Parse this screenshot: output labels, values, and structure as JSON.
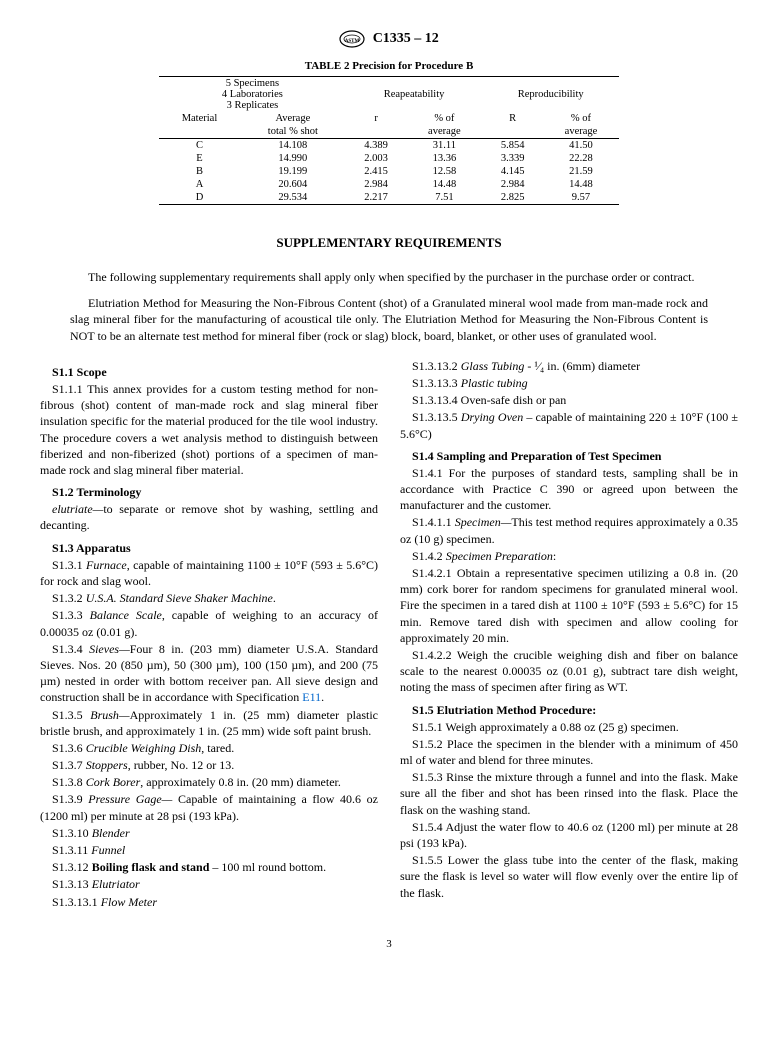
{
  "header": {
    "doc_code": "C1335 – 12"
  },
  "table": {
    "title": "TABLE 2 Precision for Procedure B",
    "spec_line1": "5 Specimens",
    "spec_line2": "4 Laboratories",
    "spec_line3": "3 Replicates",
    "group1": "Reapeatability",
    "group2": "Reproducibility",
    "col_material": "Material",
    "col_avg_l1": "Average",
    "col_avg_l2": "total % shot",
    "col_r": "r",
    "col_pct1_l1": "% of",
    "col_pct1_l2": "average",
    "col_R": "R",
    "col_pct2_l1": "% of",
    "col_pct2_l2": "average",
    "rows": [
      {
        "m": "C",
        "avg": "14.108",
        "r": "4.389",
        "p1": "31.11",
        "R": "5.854",
        "p2": "41.50"
      },
      {
        "m": "E",
        "avg": "14.990",
        "r": "2.003",
        "p1": "13.36",
        "R": "3.339",
        "p2": "22.28"
      },
      {
        "m": "B",
        "avg": "19.199",
        "r": "2.415",
        "p1": "12.58",
        "R": "4.145",
        "p2": "21.59"
      },
      {
        "m": "A",
        "avg": "20.604",
        "r": "2.984",
        "p1": "14.48",
        "R": "2.984",
        "p2": "14.48"
      },
      {
        "m": "D",
        "avg": "29.534",
        "r": "2.217",
        "p1": "7.51",
        "R": "2.825",
        "p2": "9.57"
      }
    ]
  },
  "supp_title": "SUPPLEMENTARY REQUIREMENTS",
  "intro1": "The following supplementary requirements shall apply only when specified by the purchaser in the purchase order or contract.",
  "intro2": "Elutriation Method for Measuring the Non-Fibrous Content (shot) of a Granulated mineral wool made from man-made rock and slag mineral fiber for the manufacturing of acoustical tile only. The Elutriation Method for Measuring the Non-Fibrous Content is NOT to be an alternate test method for mineral fiber (rock or slag) block, board, blanket, or other uses of granulated wool.",
  "s1_1_h": "S1.1 Scope",
  "s1_1_1": "S1.1.1 This annex provides for a custom testing method for non-fibrous (shot) content of man-made rock and slag mineral fiber insulation specific for the material produced for the tile wool industry. The procedure covers a wet analysis method to distinguish between fiberized and non-fiberized (shot) portions of a specimen of man-made rock and slag mineral fiber material.",
  "s1_2_h": "S1.2 Terminology",
  "s1_2_def": "elutriate—",
  "s1_2_body": "to separate or remove shot by washing, settling and decanting.",
  "s1_3_h": "S1.3 Apparatus",
  "s1_3_1a": "S1.3.1 ",
  "s1_3_1i": "Furnace",
  "s1_3_1b": ", capable of maintaining 1100 ± 10°F (593 ± 5.6°C) for rock and slag wool.",
  "s1_3_2a": "S1.3.2 ",
  "s1_3_2i": "U.S.A. Standard Sieve Shaker Machine",
  "s1_3_2b": ".",
  "s1_3_3a": "S1.3.3 ",
  "s1_3_3i": "Balance Scale",
  "s1_3_3b": ", capable of weighing to an accuracy of 0.00035 oz (0.01 g).",
  "s1_3_4a": "S1.3.4 ",
  "s1_3_4i": "Sieves—",
  "s1_3_4b": "Four 8 in. (203 mm) diameter U.S.A. Standard Sieves. Nos. 20 (850 µm), 50 (300 µm), 100 (150 µm), and 200 (75 µm) nested in order with bottom receiver pan. All sieve design and construction shall be in accordance with Specification ",
  "s1_3_4link": "E11",
  "s1_3_4c": ".",
  "s1_3_5a": "S1.3.5 ",
  "s1_3_5i": "Brush—",
  "s1_3_5b": "Approximately 1 in. (25 mm) diameter plastic bristle brush, and approximately 1 in. (25 mm) wide soft paint brush.",
  "s1_3_6a": "S1.3.6 ",
  "s1_3_6i": "Crucible Weighing Dish",
  "s1_3_6b": ", tared.",
  "s1_3_7a": "S1.3.7 ",
  "s1_3_7i": "Stoppers",
  "s1_3_7b": ", rubber, No. 12 or 13.",
  "s1_3_8a": "S1.3.8 ",
  "s1_3_8i": "Cork Borer",
  "s1_3_8b": ", approximately 0.8 in. (20 mm) diameter.",
  "s1_3_9a": "S1.3.9 ",
  "s1_3_9i": "Pressure Gage— ",
  "s1_3_9b": "Capable of maintaining a flow 40.6 oz (1200 ml) per minute at 28 psi (193 kPa).",
  "s1_3_10a": "S1.3.10 ",
  "s1_3_10i": "Blender",
  "s1_3_11a": "S1.3.11 ",
  "s1_3_11i": "Funnel",
  "s1_3_12a": "S1.3.12 ",
  "s1_3_12b": "Boiling flask and stand",
  "s1_3_12c": " – 100 ml round bottom.",
  "s1_3_13a": "S1.3.13 ",
  "s1_3_13i": "Elutriator",
  "s1_3_13_1a": "S1.3.13.1 ",
  "s1_3_13_1i": "Flow Meter",
  "s1_3_13_2a": "S1.3.13.2 ",
  "s1_3_13_2i": "Glass Tubing",
  "s1_3_13_2b": " - ¹⁄₄ in. (6mm) diameter",
  "s1_3_13_3a": "S1.3.13.3 ",
  "s1_3_13_3i": "Plastic tubing",
  "s1_3_13_4": "S1.3.13.4 Oven-safe dish or pan",
  "s1_3_13_5a": "S1.3.13.5 ",
  "s1_3_13_5i": "Drying Oven",
  "s1_3_13_5b": " – capable of maintaining 220 ± 10°F (100 ± 5.6°C)",
  "s1_4_h": "S1.4 Sampling and Preparation of Test Specimen",
  "s1_4_1": "S1.4.1 For the purposes of standard tests, sampling shall be in accordance with Practice C 390 or agreed upon between the manufacturer and the customer.",
  "s1_4_1_1a": "S1.4.1.1 ",
  "s1_4_1_1i": "Specimen—",
  "s1_4_1_1b": "This test method requires approximately a 0.35 oz (10 g) specimen.",
  "s1_4_2a": "S1.4.2 ",
  "s1_4_2i": "Specimen Preparation",
  "s1_4_2b": ":",
  "s1_4_2_1": "S1.4.2.1 Obtain a representative specimen utilizing a 0.8 in. (20 mm) cork borer for random specimens for granulated mineral wool. Fire the specimen in a tared dish at 1100 ± 10°F (593 ± 5.6°C) for 15 min. Remove tared dish with specimen and allow cooling for approximately 20 min.",
  "s1_4_2_2": "S1.4.2.2 Weigh the crucible weighing dish and fiber on balance scale to the nearest 0.00035 oz (0.01 g), subtract tare dish weight, noting the mass of specimen after firing as WT.",
  "s1_5_h": "S1.5 Elutriation Method Procedure:",
  "s1_5_1": "S1.5.1 Weigh approximately a 0.88 oz (25 g) specimen.",
  "s1_5_2": "S1.5.2 Place the specimen in the blender with a minimum of 450 ml of water and blend for three minutes.",
  "s1_5_3": "S1.5.3 Rinse the mixture through a funnel and into the flask. Make sure all the fiber and shot has been rinsed into the flask. Place the flask on the washing stand.",
  "s1_5_4": "S1.5.4 Adjust the water flow to 40.6 oz (1200 ml) per minute at 28 psi (193 kPa).",
  "s1_5_5": "S1.5.5 Lower the glass tube into the center of the flask, making sure the flask is level so water will flow evenly over the entire lip of the flask.",
  "pagenum": "3"
}
